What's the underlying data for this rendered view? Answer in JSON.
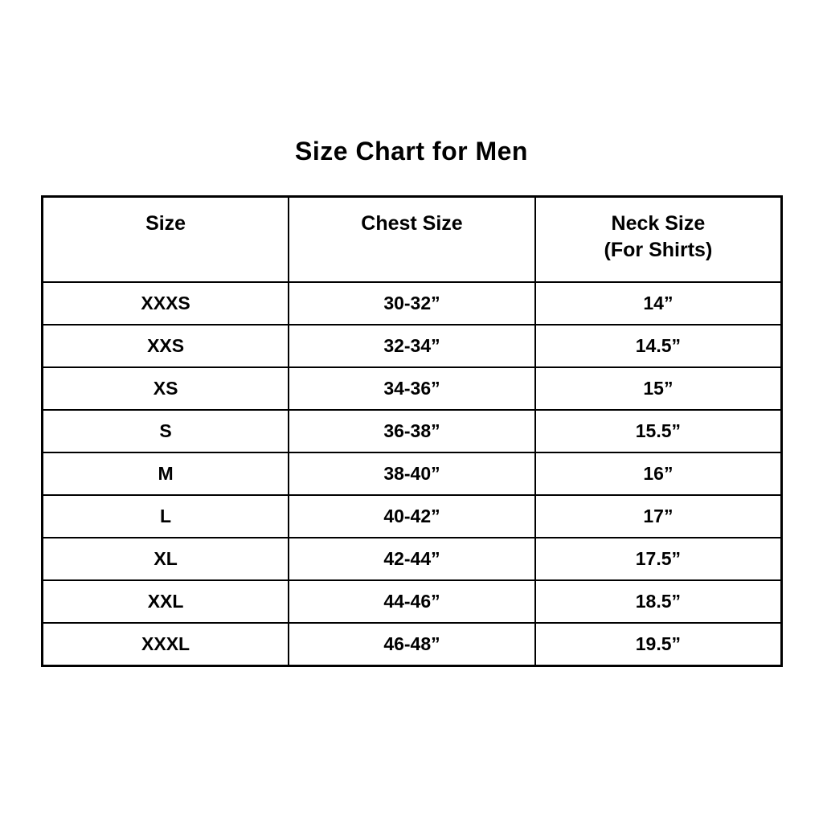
{
  "title": "Size Chart for Men",
  "colors": {
    "background": "#ffffff",
    "text": "#000000",
    "border": "#000000"
  },
  "chart_data": {
    "type": "table",
    "title": "Size Chart for Men",
    "columns": [
      "Size",
      "Chest Size",
      "Neck Size (For Shirts)"
    ],
    "header": {
      "size": "Size",
      "chest": "Chest Size",
      "neck_line1": "Neck Size",
      "neck_line2": "(For Shirts)"
    },
    "rows": [
      {
        "size": "XXXS",
        "chest": "30-32”",
        "neck": "14”"
      },
      {
        "size": "XXS",
        "chest": "32-34”",
        "neck": "14.5”"
      },
      {
        "size": "XS",
        "chest": "34-36”",
        "neck": "15”"
      },
      {
        "size": "S",
        "chest": "36-38”",
        "neck": "15.5”"
      },
      {
        "size": "M",
        "chest": "38-40”",
        "neck": "16”"
      },
      {
        "size": "L",
        "chest": "40-42”",
        "neck": "17”"
      },
      {
        "size": "XL",
        "chest": "42-44”",
        "neck": "17.5”"
      },
      {
        "size": "XXL",
        "chest": "44-46”",
        "neck": "18.5”"
      },
      {
        "size": "XXXL",
        "chest": "46-48”",
        "neck": "19.5”"
      }
    ]
  }
}
